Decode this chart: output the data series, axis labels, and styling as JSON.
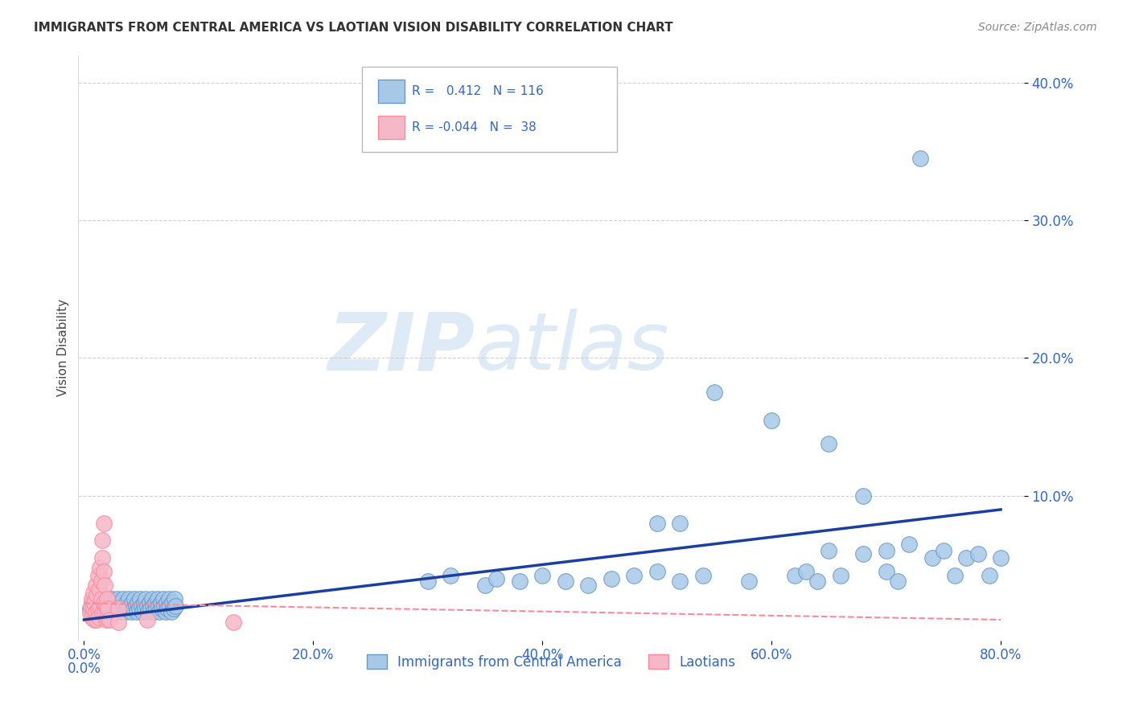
{
  "title": "IMMIGRANTS FROM CENTRAL AMERICA VS LAOTIAN VISION DISABILITY CORRELATION CHART",
  "source": "Source: ZipAtlas.com",
  "xlabel_blue": "Immigrants from Central America",
  "xlabel_pink": "Laotians",
  "ylabel": "Vision Disability",
  "xlim": [
    -0.005,
    0.82
  ],
  "ylim": [
    -0.005,
    0.42
  ],
  "xticks": [
    0.0,
    0.2,
    0.4,
    0.6,
    0.8
  ],
  "yticks": [
    0.1,
    0.2,
    0.3,
    0.4
  ],
  "blue_R": 0.412,
  "blue_N": 116,
  "pink_R": -0.044,
  "pink_N": 38,
  "blue_color": "#a8c8e8",
  "blue_edge_color": "#6699CC",
  "pink_color": "#f5b8c8",
  "pink_edge_color": "#FF8899",
  "blue_scatter": [
    [
      0.005,
      0.018
    ],
    [
      0.007,
      0.022
    ],
    [
      0.008,
      0.015
    ],
    [
      0.009,
      0.025
    ],
    [
      0.01,
      0.02
    ],
    [
      0.011,
      0.016
    ],
    [
      0.012,
      0.022
    ],
    [
      0.013,
      0.018
    ],
    [
      0.014,
      0.025
    ],
    [
      0.015,
      0.02
    ],
    [
      0.016,
      0.015
    ],
    [
      0.017,
      0.022
    ],
    [
      0.018,
      0.018
    ],
    [
      0.019,
      0.025
    ],
    [
      0.02,
      0.02
    ],
    [
      0.021,
      0.016
    ],
    [
      0.022,
      0.022
    ],
    [
      0.023,
      0.018
    ],
    [
      0.024,
      0.025
    ],
    [
      0.025,
      0.02
    ],
    [
      0.026,
      0.016
    ],
    [
      0.027,
      0.022
    ],
    [
      0.028,
      0.018
    ],
    [
      0.029,
      0.025
    ],
    [
      0.03,
      0.02
    ],
    [
      0.031,
      0.016
    ],
    [
      0.032,
      0.022
    ],
    [
      0.033,
      0.018
    ],
    [
      0.034,
      0.025
    ],
    [
      0.035,
      0.02
    ],
    [
      0.036,
      0.016
    ],
    [
      0.037,
      0.022
    ],
    [
      0.038,
      0.018
    ],
    [
      0.039,
      0.025
    ],
    [
      0.04,
      0.02
    ],
    [
      0.041,
      0.016
    ],
    [
      0.042,
      0.022
    ],
    [
      0.043,
      0.018
    ],
    [
      0.044,
      0.025
    ],
    [
      0.045,
      0.02
    ],
    [
      0.046,
      0.016
    ],
    [
      0.047,
      0.022
    ],
    [
      0.048,
      0.018
    ],
    [
      0.049,
      0.025
    ],
    [
      0.05,
      0.02
    ],
    [
      0.051,
      0.016
    ],
    [
      0.052,
      0.022
    ],
    [
      0.053,
      0.018
    ],
    [
      0.054,
      0.025
    ],
    [
      0.055,
      0.02
    ],
    [
      0.056,
      0.016
    ],
    [
      0.057,
      0.022
    ],
    [
      0.058,
      0.018
    ],
    [
      0.059,
      0.025
    ],
    [
      0.06,
      0.02
    ],
    [
      0.061,
      0.016
    ],
    [
      0.062,
      0.022
    ],
    [
      0.063,
      0.018
    ],
    [
      0.064,
      0.025
    ],
    [
      0.065,
      0.02
    ],
    [
      0.066,
      0.016
    ],
    [
      0.067,
      0.022
    ],
    [
      0.068,
      0.018
    ],
    [
      0.069,
      0.025
    ],
    [
      0.07,
      0.02
    ],
    [
      0.071,
      0.016
    ],
    [
      0.072,
      0.022
    ],
    [
      0.073,
      0.018
    ],
    [
      0.074,
      0.025
    ],
    [
      0.075,
      0.02
    ],
    [
      0.076,
      0.016
    ],
    [
      0.077,
      0.022
    ],
    [
      0.078,
      0.018
    ],
    [
      0.079,
      0.025
    ],
    [
      0.08,
      0.02
    ],
    [
      0.3,
      0.038
    ],
    [
      0.32,
      0.042
    ],
    [
      0.35,
      0.035
    ],
    [
      0.36,
      0.04
    ],
    [
      0.38,
      0.038
    ],
    [
      0.4,
      0.042
    ],
    [
      0.42,
      0.038
    ],
    [
      0.44,
      0.035
    ],
    [
      0.46,
      0.04
    ],
    [
      0.48,
      0.042
    ],
    [
      0.5,
      0.045
    ],
    [
      0.5,
      0.08
    ],
    [
      0.52,
      0.038
    ],
    [
      0.52,
      0.08
    ],
    [
      0.54,
      0.042
    ],
    [
      0.55,
      0.175
    ],
    [
      0.58,
      0.038
    ],
    [
      0.6,
      0.155
    ],
    [
      0.62,
      0.042
    ],
    [
      0.63,
      0.045
    ],
    [
      0.64,
      0.038
    ],
    [
      0.65,
      0.138
    ],
    [
      0.65,
      0.06
    ],
    [
      0.66,
      0.042
    ],
    [
      0.68,
      0.1
    ],
    [
      0.68,
      0.058
    ],
    [
      0.7,
      0.06
    ],
    [
      0.7,
      0.045
    ],
    [
      0.71,
      0.038
    ],
    [
      0.72,
      0.065
    ],
    [
      0.73,
      0.345
    ],
    [
      0.74,
      0.055
    ],
    [
      0.75,
      0.06
    ],
    [
      0.76,
      0.042
    ],
    [
      0.77,
      0.055
    ],
    [
      0.78,
      0.058
    ],
    [
      0.79,
      0.042
    ],
    [
      0.8,
      0.055
    ]
  ],
  "pink_scatter": [
    [
      0.005,
      0.015
    ],
    [
      0.006,
      0.02
    ],
    [
      0.007,
      0.012
    ],
    [
      0.007,
      0.025
    ],
    [
      0.008,
      0.018
    ],
    [
      0.008,
      0.03
    ],
    [
      0.009,
      0.022
    ],
    [
      0.009,
      0.01
    ],
    [
      0.01,
      0.035
    ],
    [
      0.01,
      0.015
    ],
    [
      0.011,
      0.028
    ],
    [
      0.011,
      0.01
    ],
    [
      0.012,
      0.042
    ],
    [
      0.012,
      0.018
    ],
    [
      0.013,
      0.032
    ],
    [
      0.013,
      0.012
    ],
    [
      0.014,
      0.048
    ],
    [
      0.014,
      0.02
    ],
    [
      0.015,
      0.038
    ],
    [
      0.015,
      0.025
    ],
    [
      0.016,
      0.055
    ],
    [
      0.016,
      0.015
    ],
    [
      0.016,
      0.068
    ],
    [
      0.017,
      0.045
    ],
    [
      0.017,
      0.022
    ],
    [
      0.017,
      0.08
    ],
    [
      0.018,
      0.035
    ],
    [
      0.018,
      0.015
    ],
    [
      0.019,
      0.02
    ],
    [
      0.019,
      0.01
    ],
    [
      0.02,
      0.025
    ],
    [
      0.02,
      0.012
    ],
    [
      0.021,
      0.018
    ],
    [
      0.022,
      0.01
    ],
    [
      0.03,
      0.018
    ],
    [
      0.03,
      0.008
    ],
    [
      0.055,
      0.01
    ],
    [
      0.13,
      0.008
    ]
  ],
  "blue_line_color": "#1a3fa0",
  "pink_line_color": "#FF8899",
  "blue_line_start_x": 0.0,
  "blue_line_start_y": 0.01,
  "blue_line_end_x": 0.8,
  "blue_line_end_y": 0.09,
  "pink_line_start_x": 0.0,
  "pink_line_start_y": 0.022,
  "pink_line_end_x": 0.8,
  "pink_line_end_y": 0.01,
  "watermark_zip": "ZIP",
  "watermark_atlas": "atlas",
  "background_color": "#ffffff",
  "grid_color": "#cccccc"
}
